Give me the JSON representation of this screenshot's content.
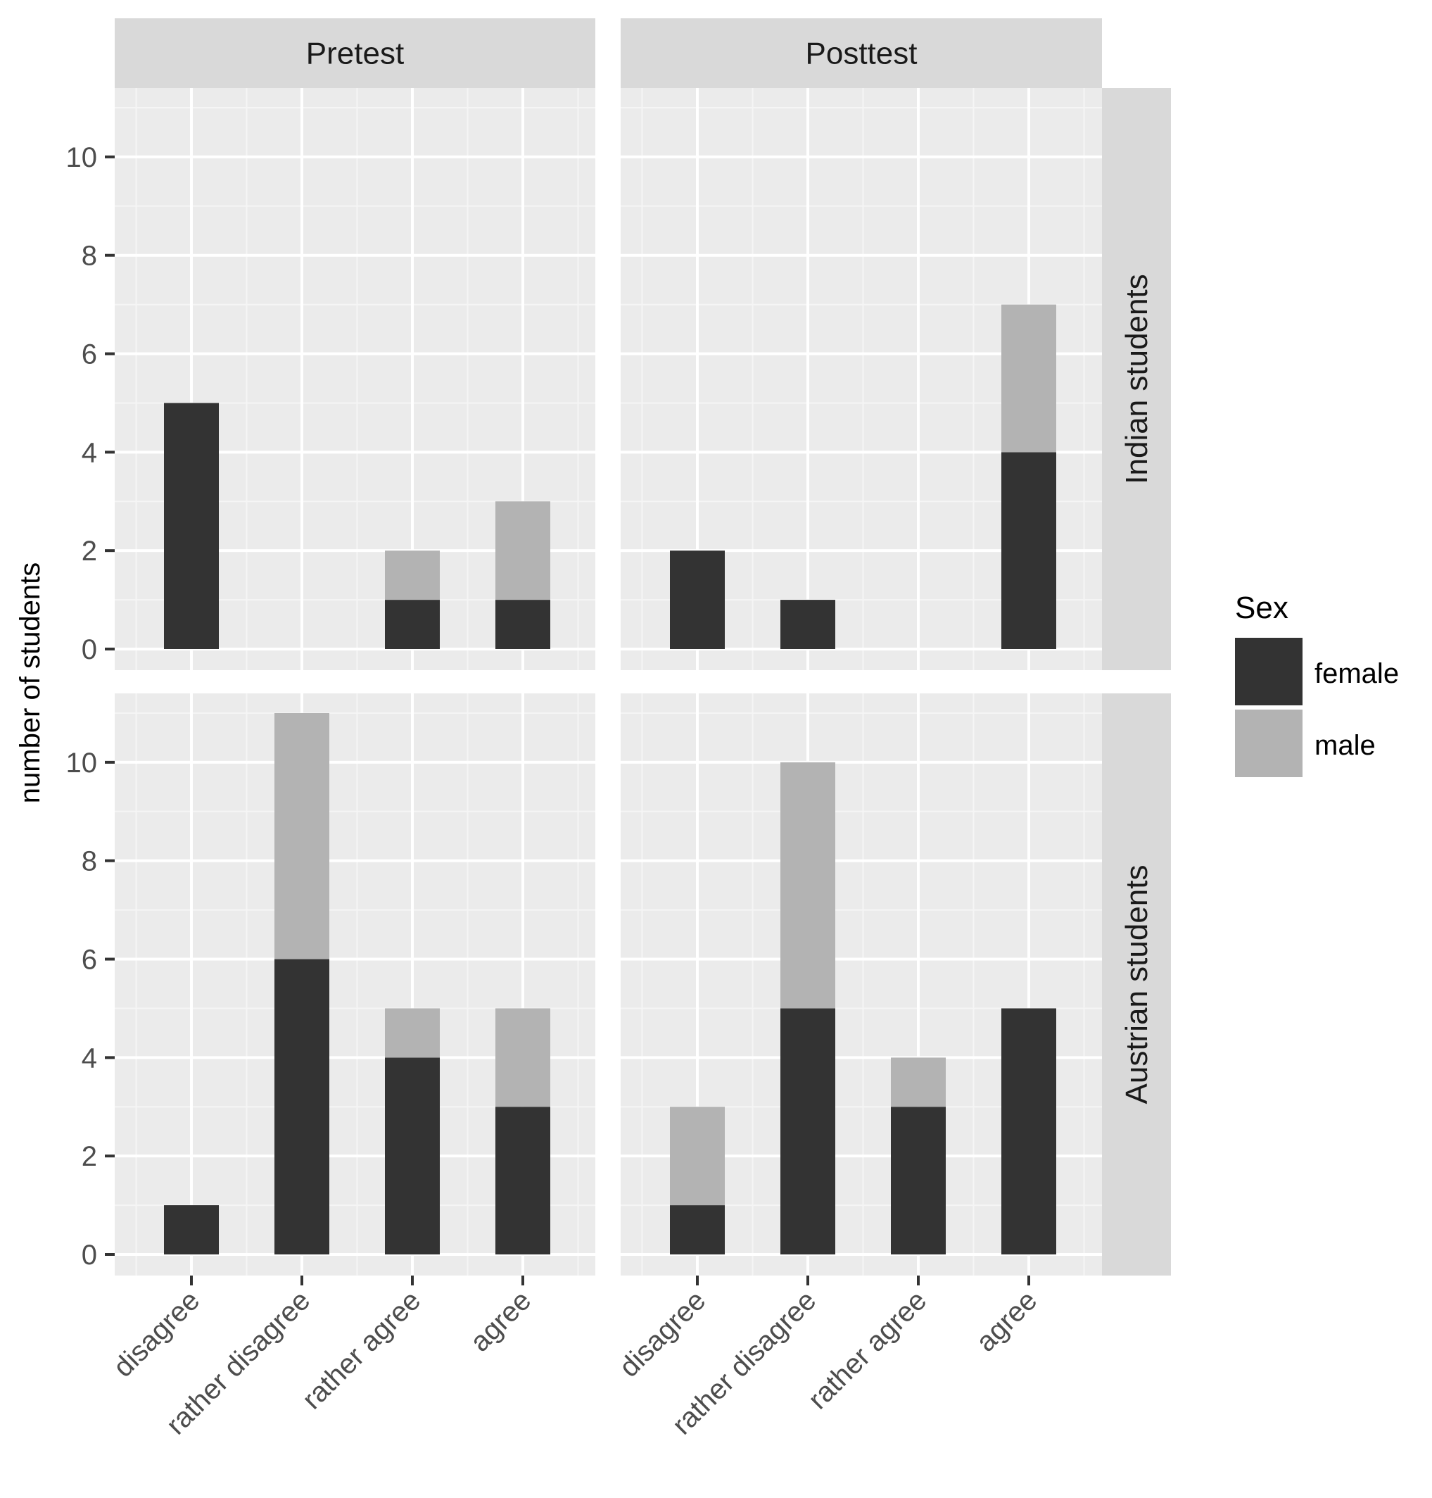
{
  "chart_data": {
    "type": "bar",
    "stacked": true,
    "ylabel": "number of students",
    "xlabel": "",
    "categories": [
      "disagree",
      "rather disagree",
      "rather agree",
      "agree"
    ],
    "col_facets": [
      "Pretest",
      "Posttest"
    ],
    "row_facets": [
      "Indian students",
      "Austrian students"
    ],
    "ylim": [
      0,
      11.4
    ],
    "yticks": [
      0,
      2,
      4,
      6,
      8,
      10
    ],
    "legend": {
      "title": "Sex",
      "position": "right",
      "entries": [
        {
          "name": "female",
          "color": "#333333"
        },
        {
          "name": "male",
          "color": "#b3b3b3"
        }
      ]
    },
    "panels": [
      {
        "row": "Indian students",
        "col": "Pretest",
        "series": [
          {
            "name": "female",
            "values": [
              5,
              0,
              1,
              1
            ]
          },
          {
            "name": "male",
            "values": [
              0,
              0,
              1,
              2
            ]
          }
        ]
      },
      {
        "row": "Indian students",
        "col": "Posttest",
        "series": [
          {
            "name": "female",
            "values": [
              2,
              1,
              0,
              4
            ]
          },
          {
            "name": "male",
            "values": [
              0,
              0,
              0,
              3
            ]
          }
        ]
      },
      {
        "row": "Austrian students",
        "col": "Pretest",
        "series": [
          {
            "name": "female",
            "values": [
              1,
              6,
              4,
              3
            ]
          },
          {
            "name": "male",
            "values": [
              0,
              5,
              1,
              2
            ]
          }
        ]
      },
      {
        "row": "Austrian students",
        "col": "Posttest",
        "series": [
          {
            "name": "female",
            "values": [
              1,
              5,
              3,
              5
            ]
          },
          {
            "name": "male",
            "values": [
              2,
              5,
              1,
              0
            ]
          }
        ]
      }
    ],
    "colors": {
      "panel_bg": "#ebebeb",
      "strip_bg": "#d9d9d9",
      "grid_major": "#ffffff",
      "grid_minor": "#f5f5f5",
      "female": "#333333",
      "male": "#b3b3b3"
    }
  }
}
